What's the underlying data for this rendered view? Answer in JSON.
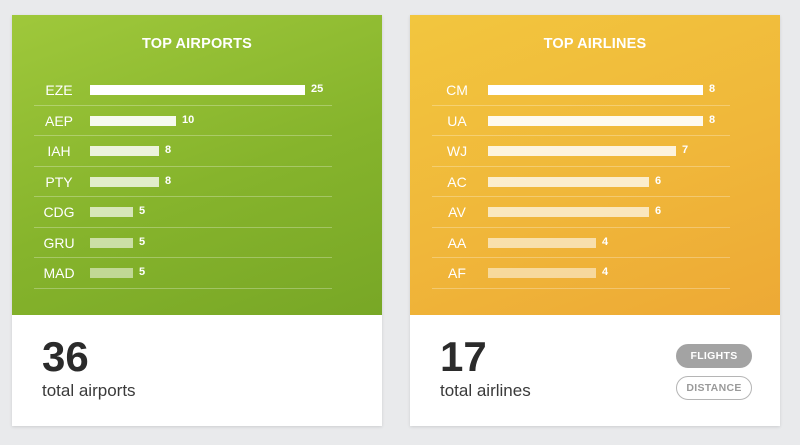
{
  "airports": {
    "title": "TOP AIRPORTS",
    "total": "36",
    "total_label": "total airports",
    "items": [
      {
        "label": "EZE",
        "value": "25"
      },
      {
        "label": "AEP",
        "value": "10"
      },
      {
        "label": "IAH",
        "value": "8"
      },
      {
        "label": "PTY",
        "value": "8"
      },
      {
        "label": "CDG",
        "value": "5"
      },
      {
        "label": "GRU",
        "value": "5"
      },
      {
        "label": "MAD",
        "value": "5"
      }
    ]
  },
  "airlines": {
    "title": "TOP AIRLINES",
    "total": "17",
    "total_label": "total airlines",
    "items": [
      {
        "label": "CM",
        "value": "8"
      },
      {
        "label": "UA",
        "value": "8"
      },
      {
        "label": "WJ",
        "value": "7"
      },
      {
        "label": "AC",
        "value": "6"
      },
      {
        "label": "AV",
        "value": "6"
      },
      {
        "label": "AA",
        "value": "4"
      },
      {
        "label": "AF",
        "value": "4"
      }
    ],
    "toggle": {
      "flights_label": "FLIGHTS",
      "distance_label": "DISTANCE",
      "selected": "FLIGHTS"
    }
  },
  "colors": {
    "airports_panel": "#8bbb2f",
    "airlines_panel": "#f0b73a"
  }
}
